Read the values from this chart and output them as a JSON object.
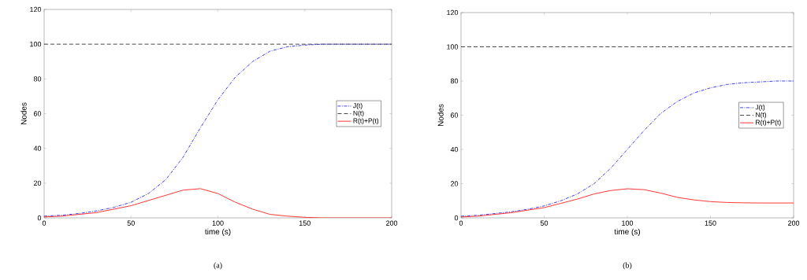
{
  "chart_data": [
    {
      "type": "line",
      "xlabel": "time (s)",
      "ylabel": "Nodes",
      "annotations": [
        "(a)"
      ],
      "xlim": [
        0,
        200
      ],
      "ylim": [
        0,
        120
      ],
      "xticks": [
        0,
        50,
        100,
        150,
        200
      ],
      "yticks": [
        0,
        20,
        40,
        60,
        80,
        100,
        120
      ],
      "legend": "right",
      "grid": false,
      "x": [
        0,
        10,
        20,
        30,
        40,
        50,
        60,
        70,
        80,
        90,
        100,
        110,
        120,
        130,
        140,
        150,
        160,
        170,
        180,
        190,
        200
      ],
      "series": [
        {
          "name": "J(t)",
          "color": "#2b2bf0",
          "line_style": "dashdot",
          "values": [
            1,
            1.5,
            2.5,
            4,
            6,
            9,
            14,
            22,
            35,
            52,
            68,
            81,
            90,
            96,
            98.5,
            99.5,
            100,
            100,
            100,
            100,
            100
          ]
        },
        {
          "name": "N(t)",
          "color": "#333333",
          "line_style": "dashed",
          "values": [
            100,
            100,
            100,
            100,
            100,
            100,
            100,
            100,
            100,
            100,
            100,
            100,
            100,
            100,
            100,
            100,
            100,
            100,
            100,
            100,
            100
          ]
        },
        {
          "name": "R(t)+P(t)",
          "color": "#ff2020",
          "line_style": "solid",
          "values": [
            0.5,
            1,
            2,
            3,
            5,
            7,
            10,
            13,
            16,
            16.8,
            14,
            9,
            5,
            2,
            1,
            0.3,
            0,
            0,
            0,
            0,
            0
          ]
        }
      ]
    },
    {
      "type": "line",
      "xlabel": "time (s)",
      "ylabel": "Nodes",
      "annotations": [
        "(b)"
      ],
      "xlim": [
        0,
        200
      ],
      "ylim": [
        0,
        120
      ],
      "xticks": [
        0,
        50,
        100,
        150,
        200
      ],
      "yticks": [
        0,
        20,
        40,
        60,
        80,
        100,
        120
      ],
      "legend": "right",
      "grid": false,
      "x": [
        0,
        10,
        20,
        30,
        40,
        50,
        60,
        70,
        80,
        90,
        100,
        110,
        120,
        130,
        140,
        150,
        160,
        170,
        180,
        190,
        200
      ],
      "series": [
        {
          "name": "J(t)",
          "color": "#2b2bf0",
          "line_style": "dashdot",
          "values": [
            1,
            1.5,
            2.5,
            3.5,
            5,
            7,
            10,
            14,
            20,
            29,
            40,
            51,
            61,
            68,
            73,
            76,
            78,
            79,
            79.5,
            80,
            80
          ]
        },
        {
          "name": "N(t)",
          "color": "#333333",
          "line_style": "dashed",
          "values": [
            100,
            100,
            100,
            100,
            100,
            100,
            100,
            100,
            100,
            100,
            100,
            100,
            100,
            100,
            100,
            100,
            100,
            100,
            100,
            100,
            100
          ]
        },
        {
          "name": "R(t)+P(t)",
          "color": "#ff2020",
          "line_style": "solid",
          "values": [
            0.5,
            1,
            2,
            3,
            4.5,
            6,
            8.5,
            11,
            14,
            16,
            17,
            16.5,
            14.5,
            12,
            10.5,
            9.5,
            9,
            8.8,
            8.7,
            8.7,
            8.7
          ]
        }
      ]
    }
  ]
}
